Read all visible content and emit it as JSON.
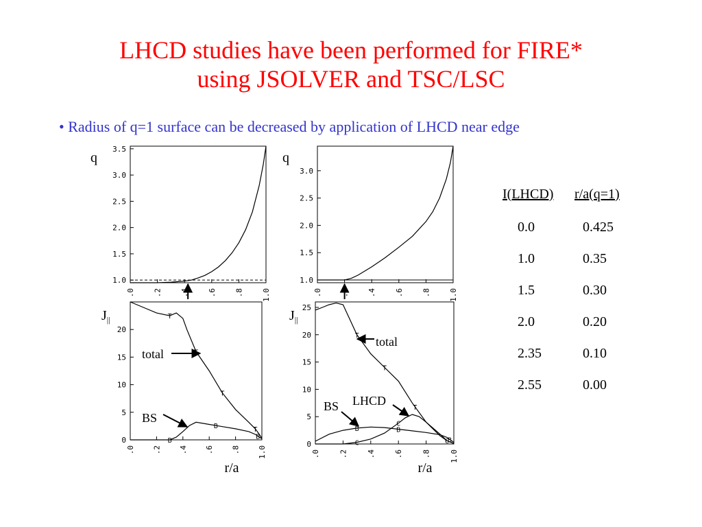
{
  "slide": {
    "title_line1": "LHCD studies have been performed for FIRE*",
    "title_line2": "using JSOLVER and TSC/LSC",
    "bullet": "• Radius of q=1 surface can be decreased by application of LHCD near edge"
  },
  "table": {
    "headers": [
      "I(LHCD)",
      "r/a(q=1)"
    ],
    "rows": [
      [
        "0.0",
        "0.425"
      ],
      [
        "1.0",
        "0.35"
      ],
      [
        "1.5",
        "0.30"
      ],
      [
        "2.0",
        "0.20"
      ],
      [
        "2.35",
        "0.10"
      ],
      [
        "2.55",
        "0.00"
      ]
    ]
  },
  "chart_data": [
    {
      "type": "line",
      "ylabel": "q",
      "xlabel": "",
      "xlim": [
        0,
        1
      ],
      "ylim": [
        0.95,
        3.55
      ],
      "yticks": [
        "1.0",
        "1.5",
        "2.0",
        "2.5",
        "3.0",
        "3.5"
      ],
      "ytick_values": [
        1.0,
        1.5,
        2.0,
        2.5,
        3.0,
        3.5
      ],
      "xticks": [
        ".0",
        ".2",
        ".4",
        ".6",
        ".8",
        "1.0"
      ],
      "xtick_values": [
        0,
        0.2,
        0.4,
        0.6,
        0.8,
        1.0
      ],
      "reference_line": 1.0,
      "q1_marker_x": 0.425,
      "series": [
        {
          "x": [
            0,
            0.1,
            0.2,
            0.3,
            0.4,
            0.45,
            0.5,
            0.55,
            0.6,
            0.65,
            0.7,
            0.75,
            0.8,
            0.85,
            0.9,
            0.95,
            0.98,
            1.0
          ],
          "y": [
            0.95,
            0.95,
            0.95,
            0.96,
            0.98,
            1.0,
            1.04,
            1.09,
            1.16,
            1.25,
            1.37,
            1.52,
            1.71,
            1.96,
            2.3,
            2.8,
            3.2,
            3.55
          ]
        }
      ]
    },
    {
      "type": "line",
      "ylabel": "q",
      "xlabel": "",
      "xlim": [
        0,
        1
      ],
      "ylim": [
        0.95,
        3.45
      ],
      "yticks": [
        "1.0",
        "1.5",
        "2.0",
        "2.5",
        "3.0"
      ],
      "ytick_values": [
        1.0,
        1.5,
        2.0,
        2.5,
        3.0
      ],
      "xticks": [
        ".0",
        ".2",
        ".4",
        ".6",
        ".8",
        "1.0"
      ],
      "xtick_values": [
        0,
        0.2,
        0.4,
        0.6,
        0.8,
        1.0
      ],
      "reference_line": 1.0,
      "q1_marker_x": 0.2,
      "series": [
        {
          "x": [
            0,
            0.1,
            0.2,
            0.25,
            0.3,
            0.4,
            0.5,
            0.6,
            0.7,
            0.8,
            0.85,
            0.9,
            0.95,
            0.98,
            1.0
          ],
          "y": [
            1.0,
            1.0,
            1.0,
            1.03,
            1.09,
            1.24,
            1.41,
            1.6,
            1.8,
            2.07,
            2.25,
            2.5,
            2.85,
            3.15,
            3.45
          ]
        }
      ]
    },
    {
      "type": "line",
      "ylabel": "J",
      "ylabel_sub": "||",
      "xlabel": "r/a",
      "xlim": [
        0,
        1
      ],
      "ylim": [
        0,
        25
      ],
      "yticks": [
        "0",
        "5",
        "10",
        "15",
        "20"
      ],
      "ytick_values": [
        0,
        5,
        10,
        15,
        20
      ],
      "xticks": [
        ".0",
        ".2",
        ".4",
        ".6",
        ".8",
        "1.0"
      ],
      "xtick_values": [
        0,
        0.2,
        0.4,
        0.6,
        0.8,
        1.0
      ],
      "annotations": [
        "total",
        "BS"
      ],
      "series": [
        {
          "name": "total",
          "marker": "T",
          "x": [
            0,
            0.1,
            0.2,
            0.3,
            0.35,
            0.4,
            0.43,
            0.5,
            0.6,
            0.7,
            0.8,
            0.9,
            0.95,
            0.98,
            1.0
          ],
          "y": [
            25,
            24,
            23,
            22.5,
            23,
            22,
            20,
            16,
            12.5,
            8.5,
            5.5,
            3.2,
            2,
            1,
            0.3
          ],
          "marker_x": [
            0.3,
            0.5,
            0.7,
            0.95
          ]
        },
        {
          "name": "BS",
          "marker": "B",
          "x": [
            0,
            0.3,
            0.35,
            0.4,
            0.45,
            0.5,
            0.6,
            0.7,
            0.8,
            0.9,
            0.95,
            1.0
          ],
          "y": [
            0,
            0,
            0.5,
            1.5,
            2.6,
            3.2,
            2.8,
            2.4,
            2.0,
            1.5,
            1.0,
            0.2
          ],
          "marker_x": [
            0.3,
            0.65,
            0.97
          ]
        }
      ]
    },
    {
      "type": "line",
      "ylabel": "J",
      "ylabel_sub": "||",
      "xlabel": "r/a",
      "xlim": [
        0,
        1
      ],
      "ylim": [
        0,
        26
      ],
      "yticks": [
        "0",
        "5",
        "10",
        "15",
        "20",
        "25"
      ],
      "ytick_values": [
        0,
        5,
        10,
        15,
        20,
        25
      ],
      "xticks": [
        ".0",
        ".2",
        ".4",
        ".6",
        ".8",
        "1.0"
      ],
      "xtick_values": [
        0,
        0.2,
        0.4,
        0.6,
        0.8,
        1.0
      ],
      "annotations": [
        "total",
        "BS",
        "LHCD"
      ],
      "series": [
        {
          "name": "total",
          "marker": "T",
          "x": [
            0,
            0.05,
            0.1,
            0.15,
            0.2,
            0.3,
            0.4,
            0.5,
            0.6,
            0.7,
            0.8,
            0.9,
            0.95,
            1.0
          ],
          "y": [
            24.5,
            25,
            25.5,
            25.8,
            25.5,
            20,
            16.5,
            14,
            11.5,
            7.5,
            4,
            1.5,
            0.6,
            0.1
          ],
          "marker_x": [
            0.3,
            0.5,
            0.72
          ]
        },
        {
          "name": "LHCD",
          "marker": "C",
          "x": [
            0,
            0.2,
            0.3,
            0.4,
            0.5,
            0.6,
            0.65,
            0.7,
            0.75,
            0.8,
            0.9,
            0.95,
            1.0
          ],
          "y": [
            0,
            0,
            0.3,
            0.9,
            2.0,
            3.8,
            4.8,
            5.4,
            5.0,
            4.0,
            1.8,
            0.6,
            0.1
          ],
          "marker_x": [
            0.3,
            0.6,
            0.95
          ]
        },
        {
          "name": "BS",
          "marker": "B",
          "x": [
            0,
            0.1,
            0.2,
            0.3,
            0.4,
            0.5,
            0.6,
            0.7,
            0.8,
            0.9,
            0.95,
            1.0
          ],
          "y": [
            0.5,
            1.8,
            2.5,
            2.9,
            3.1,
            3.0,
            2.7,
            2.4,
            2.1,
            1.7,
            1.2,
            0.3
          ],
          "marker_x": [
            0.3,
            0.6,
            0.97
          ]
        }
      ]
    }
  ]
}
